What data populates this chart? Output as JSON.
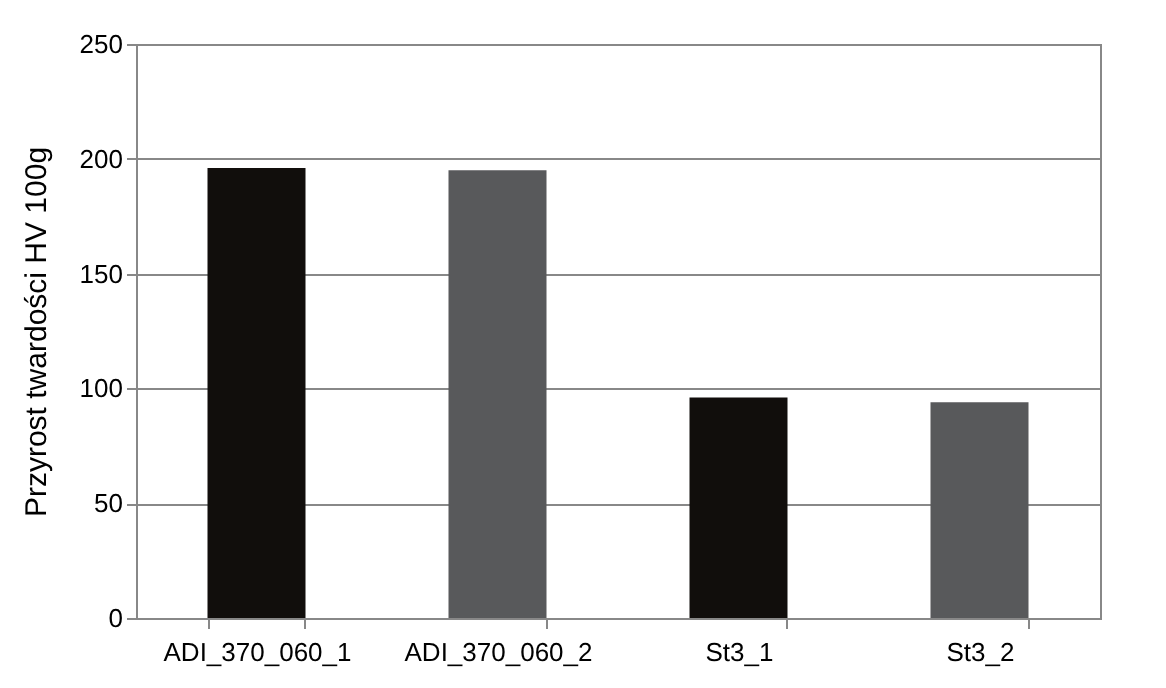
{
  "chart_data": {
    "type": "bar",
    "ylabel": "Przyrost twardości HV 100g",
    "categories": [
      "ADI_370_060_1",
      "ADI_370_060_2",
      "St3_1",
      "St3_2"
    ],
    "values": [
      196,
      195,
      96,
      94
    ],
    "colors": [
      "#110e0c",
      "#58595b",
      "#110e0c",
      "#58595b"
    ],
    "ylim": [
      0,
      250
    ],
    "yticks": [
      0,
      50,
      100,
      150,
      200,
      250
    ],
    "grid": "y"
  }
}
